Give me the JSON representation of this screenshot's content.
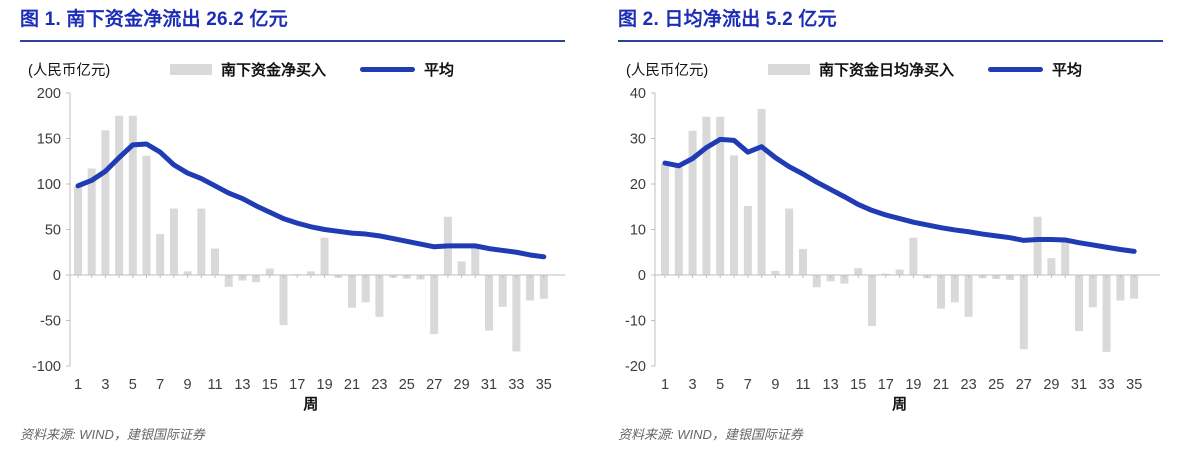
{
  "colors": {
    "title_blue": "#1c2db6",
    "rule_navy": "#2b4396",
    "bar_gray": "#d9d9d9",
    "line_blue": "#1f3cb4",
    "axis_gray": "#bfbfbf",
    "source_gray": "#666666"
  },
  "chart_data": [
    {
      "type": "bar+line",
      "title": "图 1. 南下资金净流出 26.2 亿元",
      "unit_label": "(人民币亿元)",
      "xlabel": "周",
      "source": "资料来源: WIND，建银国际证券",
      "legend_position": "top",
      "grid": false,
      "weeks": [
        1,
        2,
        3,
        4,
        5,
        6,
        7,
        8,
        9,
        10,
        11,
        12,
        13,
        14,
        15,
        16,
        17,
        18,
        19,
        20,
        21,
        22,
        23,
        24,
        25,
        26,
        27,
        28,
        29,
        30,
        31,
        32,
        33,
        34,
        35
      ],
      "x_tick_labels": [
        1,
        3,
        5,
        7,
        9,
        11,
        13,
        15,
        17,
        19,
        21,
        23,
        25,
        27,
        29,
        31,
        33,
        35
      ],
      "ylim": [
        -100,
        200
      ],
      "yticks": [
        200,
        150,
        100,
        50,
        0,
        -50,
        -100
      ],
      "series": [
        {
          "name": "南下资金净买入",
          "type": "bar",
          "color": "#d9d9d9",
          "values": [
            97,
            117,
            159,
            175,
            175,
            131,
            45,
            73,
            4,
            73,
            29,
            -13,
            -6,
            -8,
            7,
            -55,
            1,
            4,
            41,
            -3,
            -36,
            -30,
            -46,
            -3,
            -4,
            -5,
            -65,
            64,
            15,
            32,
            -61,
            -35,
            -84,
            -28,
            -26.2
          ]
        },
        {
          "name": "平均",
          "type": "line",
          "color": "#1f3cb4",
          "values": [
            98,
            104,
            114,
            129,
            143,
            144,
            135,
            121,
            112,
            106,
            98,
            90,
            84,
            76,
            69,
            62,
            57,
            53,
            50,
            48,
            46,
            45,
            43,
            40,
            37,
            34,
            31,
            32,
            32,
            32,
            29,
            27,
            25,
            22,
            20
          ]
        }
      ]
    },
    {
      "type": "bar+line",
      "title": "图 2. 日均净流出 5.2 亿元",
      "unit_label": "(人民币亿元)",
      "xlabel": "周",
      "source": "资料来源: WIND，建银国际证券",
      "legend_position": "top",
      "grid": false,
      "weeks": [
        1,
        2,
        3,
        4,
        5,
        6,
        7,
        8,
        9,
        10,
        11,
        12,
        13,
        14,
        15,
        16,
        17,
        18,
        19,
        20,
        21,
        22,
        23,
        24,
        25,
        26,
        27,
        28,
        29,
        30,
        31,
        32,
        33,
        34,
        35
      ],
      "x_tick_labels": [
        1,
        3,
        5,
        7,
        9,
        11,
        13,
        15,
        17,
        19,
        21,
        23,
        25,
        27,
        29,
        31,
        33,
        35
      ],
      "ylim": [
        -20,
        40
      ],
      "yticks": [
        40,
        30,
        20,
        10,
        0,
        -10,
        -20
      ],
      "series": [
        {
          "name": "南下资金日均净买入",
          "type": "bar",
          "color": "#d9d9d9",
          "values": [
            24.5,
            23.7,
            31.7,
            34.8,
            34.8,
            26.3,
            15.2,
            36.5,
            0.9,
            14.6,
            5.7,
            -2.7,
            -1.4,
            -1.9,
            1.5,
            -11.2,
            0.3,
            1.2,
            8.2,
            -0.7,
            -7.4,
            -6.0,
            -9.2,
            -0.7,
            -0.9,
            -1.1,
            -16.3,
            12.8,
            3.7,
            7.8,
            -12.3,
            -7.1,
            -16.9,
            -5.6,
            -5.2
          ]
        },
        {
          "name": "平均",
          "type": "line",
          "color": "#1f3cb4",
          "values": [
            24.6,
            24.0,
            25.6,
            28.0,
            29.8,
            29.6,
            27.0,
            28.2,
            25.8,
            23.8,
            22.2,
            20.4,
            18.8,
            17.2,
            15.5,
            14.2,
            13.2,
            12.4,
            11.6,
            11.0,
            10.4,
            9.9,
            9.5,
            9.0,
            8.6,
            8.2,
            7.6,
            7.8,
            7.8,
            7.7,
            7.1,
            6.6,
            6.1,
            5.6,
            5.2
          ]
        }
      ]
    }
  ]
}
